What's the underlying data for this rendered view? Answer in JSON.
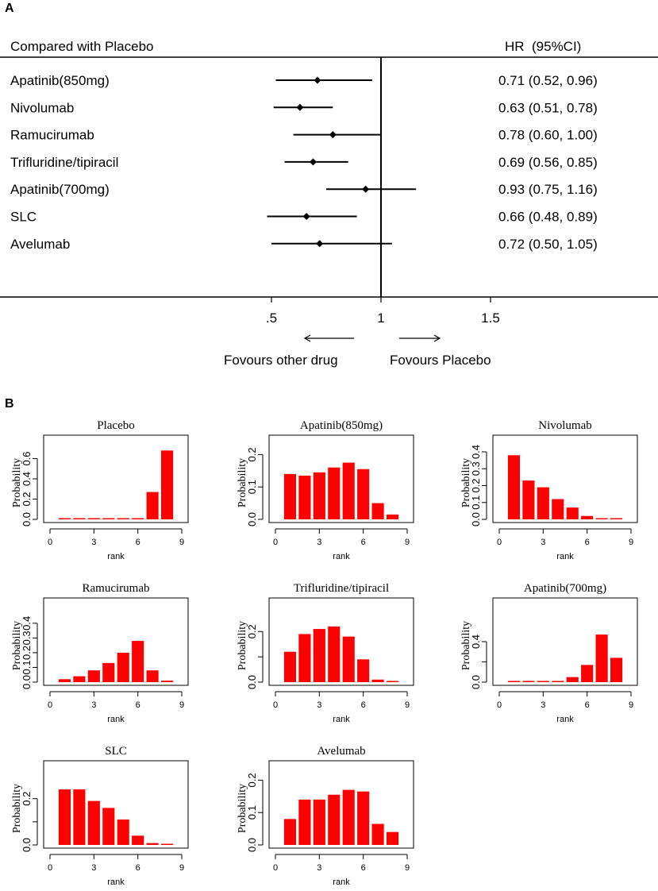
{
  "panel_a": {
    "label": "A",
    "header_left": "Compared with Placebo",
    "header_right": "HR  (95%CI)",
    "favours_left": "Fovours other drug",
    "favours_right": "Fovours Placebo"
  },
  "panel_b": {
    "label": "B"
  },
  "chart_data": [
    {
      "type": "forest",
      "title": "Compared with Placebo",
      "reference_line": 1,
      "x_ticks": [
        0.5,
        1,
        1.5
      ],
      "x_tick_labels": [
        ".5",
        "1",
        "1.5"
      ],
      "xlim": [
        0.0,
        2.0
      ],
      "studies": [
        {
          "name": "Apatinib(850mg)",
          "hr": 0.71,
          "lo": 0.52,
          "hi": 0.96,
          "label": "0.71 (0.52, 0.96)"
        },
        {
          "name": "Nivolumab",
          "hr": 0.63,
          "lo": 0.51,
          "hi": 0.78,
          "label": "0.63 (0.51, 0.78)"
        },
        {
          "name": "Ramucirumab",
          "hr": 0.78,
          "lo": 0.6,
          "hi": 1.0,
          "label": "0.78 (0.60, 1.00)"
        },
        {
          "name": "Trifluridine/tipiracil",
          "hr": 0.69,
          "lo": 0.56,
          "hi": 0.85,
          "label": "0.69 (0.56, 0.85)"
        },
        {
          "name": "Apatinib(700mg)",
          "hr": 0.93,
          "lo": 0.75,
          "hi": 1.16,
          "label": "0.93 (0.75, 1.16)"
        },
        {
          "name": "SLC",
          "hr": 0.66,
          "lo": 0.48,
          "hi": 0.89,
          "label": "0.66 (0.48, 0.89)"
        },
        {
          "name": "Avelumab",
          "hr": 0.72,
          "lo": 0.5,
          "hi": 1.05,
          "label": "0.72 (0.50, 1.05)"
        }
      ]
    },
    {
      "type": "bar",
      "title": "Placebo",
      "xlabel": "rank",
      "ylabel": "Probability",
      "categories": [
        1,
        2,
        3,
        4,
        5,
        6,
        7,
        8
      ],
      "values": [
        0.0,
        0.0,
        0.0,
        0.0,
        0.0,
        0.01,
        0.27,
        0.68
      ],
      "xlim": [
        0,
        9
      ],
      "x_ticks": [
        0,
        3,
        6,
        9
      ],
      "ylim": [
        0,
        0.8
      ],
      "y_ticks": [
        0,
        0.2,
        0.4,
        0.6
      ],
      "y_tick_labels": [
        "0.0",
        "0.2",
        "0.4",
        "0.6"
      ]
    },
    {
      "type": "bar",
      "title": "Apatinib(850mg)",
      "xlabel": "rank",
      "ylabel": "Probability",
      "categories": [
        1,
        2,
        3,
        4,
        5,
        6,
        7,
        8
      ],
      "values": [
        0.14,
        0.135,
        0.145,
        0.16,
        0.175,
        0.155,
        0.05,
        0.015
      ],
      "xlim": [
        0,
        9
      ],
      "x_ticks": [
        0,
        3,
        6,
        9
      ],
      "ylim": [
        0,
        0.25
      ],
      "y_ticks": [
        0,
        0.1,
        0.2
      ],
      "y_tick_labels": [
        "0.0",
        "0.1",
        "0.2"
      ]
    },
    {
      "type": "bar",
      "title": "Nivolumab",
      "xlabel": "rank",
      "ylabel": "Probability",
      "categories": [
        1,
        2,
        3,
        4,
        5,
        6,
        7,
        8
      ],
      "values": [
        0.38,
        0.23,
        0.19,
        0.12,
        0.07,
        0.02,
        0.005,
        0.003
      ],
      "xlim": [
        0,
        9
      ],
      "x_ticks": [
        0,
        3,
        6,
        9
      ],
      "ylim": [
        0,
        0.48
      ],
      "y_ticks": [
        0,
        0.1,
        0.2,
        0.3,
        0.4
      ],
      "y_tick_labels": [
        "0.0",
        "0.1",
        "0.2",
        "0.3",
        "0.4"
      ]
    },
    {
      "type": "bar",
      "title": "Ramucirumab",
      "xlabel": "rank",
      "ylabel": "Probability",
      "categories": [
        1,
        2,
        3,
        4,
        5,
        6,
        7,
        8
      ],
      "values": [
        0.02,
        0.04,
        0.08,
        0.13,
        0.2,
        0.28,
        0.08,
        0.01
      ],
      "xlim": [
        0,
        9
      ],
      "x_ticks": [
        0,
        3,
        6,
        9
      ],
      "ylim": [
        0,
        0.55
      ],
      "y_ticks": [
        0,
        0.1,
        0.2,
        0.3,
        0.4
      ],
      "y_tick_labels": [
        "0.0",
        "0.1",
        "0.2",
        "0.3",
        "0.4"
      ]
    },
    {
      "type": "bar",
      "title": "Trifluridine/tipiracil",
      "xlabel": "rank",
      "ylabel": "Probability",
      "categories": [
        1,
        2,
        3,
        4,
        5,
        6,
        7,
        8
      ],
      "values": [
        0.12,
        0.19,
        0.21,
        0.22,
        0.18,
        0.09,
        0.01,
        0.003
      ],
      "xlim": [
        0,
        9
      ],
      "x_ticks": [
        0,
        3,
        6,
        9
      ],
      "ylim": [
        0,
        0.32
      ],
      "y_ticks": [
        0,
        0.1,
        0.2
      ],
      "y_tick_labels": [
        "0.0",
        "",
        "0.2"
      ]
    },
    {
      "type": "bar",
      "title": "Apatinib(700mg)",
      "xlabel": "rank",
      "ylabel": "Probability",
      "categories": [
        1,
        2,
        3,
        4,
        5,
        6,
        7,
        8
      ],
      "values": [
        0.0,
        0.0,
        0.0,
        0.01,
        0.05,
        0.17,
        0.47,
        0.24
      ],
      "xlim": [
        0,
        9
      ],
      "x_ticks": [
        0,
        3,
        6,
        9
      ],
      "ylim": [
        0,
        0.8
      ],
      "y_ticks": [
        0,
        0.2,
        0.4
      ],
      "y_tick_labels": [
        "0.0",
        "",
        "0.4"
      ]
    },
    {
      "type": "bar",
      "title": "SLC",
      "xlabel": "rank",
      "ylabel": "Probability",
      "categories": [
        1,
        2,
        3,
        4,
        5,
        6,
        7,
        8
      ],
      "values": [
        0.24,
        0.24,
        0.19,
        0.16,
        0.11,
        0.04,
        0.008,
        0.003
      ],
      "xlim": [
        0,
        9
      ],
      "x_ticks": [
        0,
        3,
        6,
        9
      ],
      "ylim": [
        0,
        0.35
      ],
      "y_ticks": [
        0,
        0.1,
        0.2
      ],
      "y_tick_labels": [
        "0.0",
        "",
        "0.2"
      ]
    },
    {
      "type": "bar",
      "title": "Avelumab",
      "xlabel": "rank",
      "ylabel": "Probability",
      "categories": [
        1,
        2,
        3,
        4,
        5,
        6,
        7,
        8
      ],
      "values": [
        0.08,
        0.14,
        0.14,
        0.155,
        0.17,
        0.165,
        0.065,
        0.04
      ],
      "xlim": [
        0,
        9
      ],
      "x_ticks": [
        0,
        3,
        6,
        9
      ],
      "ylim": [
        0,
        0.25
      ],
      "y_ticks": [
        0,
        0.1,
        0.2
      ],
      "y_tick_labels": [
        "0.0",
        "0.1",
        "0.2"
      ]
    }
  ]
}
